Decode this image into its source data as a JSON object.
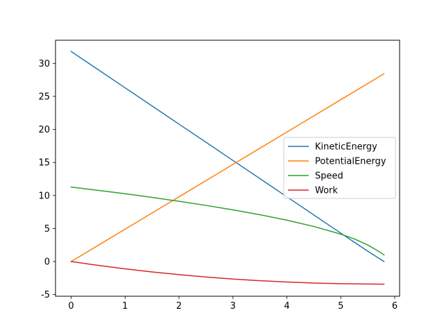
{
  "chart_data": {
    "type": "line",
    "title": "",
    "xlabel": "",
    "ylabel": "",
    "xlim": [
      -0.29,
      6.09
    ],
    "ylim": [
      -5.25,
      33.5
    ],
    "xticks": [
      0,
      1,
      2,
      3,
      4,
      5,
      6
    ],
    "yticks": [
      -5,
      0,
      5,
      10,
      15,
      20,
      25,
      30
    ],
    "grid": false,
    "legend_position": "center-right",
    "series": [
      {
        "name": "KineticEnergy",
        "color": "#1f77b4",
        "x": [
          0,
          0.5,
          1,
          1.5,
          2,
          2.5,
          3,
          3.5,
          4,
          4.5,
          5,
          5.5,
          5.8
        ],
        "y": [
          31.8,
          29.05,
          26.3,
          23.55,
          20.8,
          18.06,
          15.3,
          12.56,
          9.8,
          7.05,
          4.3,
          1.56,
          0
        ]
      },
      {
        "name": "PotentialEnergy",
        "color": "#ff7f0e",
        "x": [
          0,
          0.5,
          1,
          1.5,
          2,
          2.5,
          3,
          3.5,
          4,
          4.5,
          5,
          5.5,
          5.8
        ],
        "y": [
          0,
          2.45,
          4.9,
          7.35,
          9.8,
          12.25,
          14.7,
          17.15,
          19.6,
          22.05,
          24.5,
          26.95,
          28.42
        ]
      },
      {
        "name": "Speed",
        "color": "#2ca02c",
        "x": [
          0,
          0.5,
          1,
          1.5,
          2,
          2.5,
          3,
          3.5,
          4,
          4.5,
          5,
          5.25,
          5.5,
          5.65,
          5.75,
          5.8
        ],
        "y": [
          11.28,
          10.78,
          10.26,
          9.71,
          9.12,
          8.5,
          7.82,
          7.09,
          6.26,
          5.31,
          4.15,
          3.43,
          2.5,
          1.8,
          1.3,
          1.0
        ]
      },
      {
        "name": "Work",
        "color": "#d62728",
        "x": [
          0,
          0.5,
          1,
          1.5,
          2,
          2.5,
          3,
          3.5,
          4,
          4.5,
          5,
          5.5,
          5.8
        ],
        "y": [
          0,
          -0.58,
          -1.1,
          -1.57,
          -1.98,
          -2.34,
          -2.65,
          -2.9,
          -3.1,
          -3.25,
          -3.35,
          -3.4,
          -3.42
        ]
      }
    ]
  }
}
